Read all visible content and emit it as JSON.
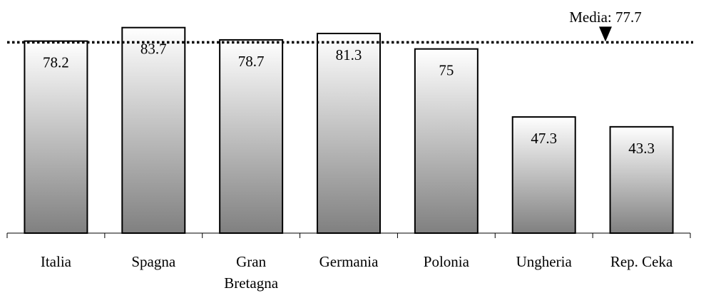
{
  "chart_data": {
    "type": "bar",
    "categories": [
      "Italia",
      "Spagna",
      "Gran Bretagna",
      "Germania",
      "Polonia",
      "Ungheria",
      "Rep. Ceka"
    ],
    "category_lines": [
      [
        "Italia"
      ],
      [
        "Spagna"
      ],
      [
        "Gran",
        "Bretagna"
      ],
      [
        "Germania"
      ],
      [
        "Polonia"
      ],
      [
        "Ungheria"
      ],
      [
        "Rep. Ceka"
      ]
    ],
    "values": [
      78.2,
      83.7,
      78.7,
      81.3,
      75,
      47.3,
      43.3
    ],
    "value_labels": [
      "78.2",
      "83.7",
      "78.7",
      "81.3",
      "75",
      "47.3",
      "43.3"
    ],
    "reference_line": {
      "value": 77.7,
      "label": "Media: 77.7",
      "style": "dotted"
    },
    "title": "",
    "xlabel": "",
    "ylabel": "",
    "ylim": [
      0,
      90
    ],
    "grid": false,
    "legend": "none",
    "colors": {
      "bar_top": "#ffffff",
      "bar_bottom": "#808080",
      "outline": "#000000",
      "line": "#000000"
    }
  }
}
